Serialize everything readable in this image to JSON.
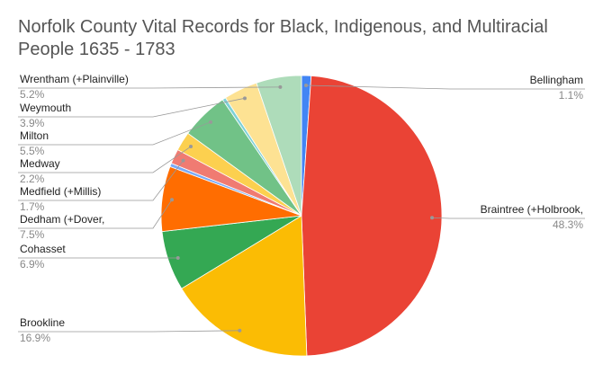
{
  "chart_data": {
    "type": "pie",
    "title": "Norfolk County Vital Records for Black, Indigenous, and Multiracial People 1635 - 1783",
    "categories": [
      "Bellingham",
      "Braintree (+Holbrook,",
      "Brookline",
      "Cohasset",
      "Dedham (+Dover,",
      null,
      "Medfield (+Millis)",
      "Medway",
      "Milton",
      null,
      "Weymouth",
      "Wrentham (+Plainville)"
    ],
    "values": [
      1.1,
      48.3,
      16.9,
      6.9,
      7.5,
      0.4,
      1.7,
      2.2,
      5.5,
      0.4,
      3.9,
      5.2
    ],
    "value_labels": [
      "1.1%",
      "48.3%",
      "16.9%",
      "6.9%",
      "7.5%",
      null,
      "1.7%",
      "2.2%",
      "5.5%",
      null,
      "3.9%",
      "5.2%"
    ],
    "colors": [
      "#4285f4",
      "#ea4335",
      "#fbbc04",
      "#34a853",
      "#ff6d01",
      "#7baaf7",
      "#f07b72",
      "#fcd04f",
      "#71c287",
      "#7ed1d7",
      "#fde293",
      "#aedcba"
    ]
  }
}
